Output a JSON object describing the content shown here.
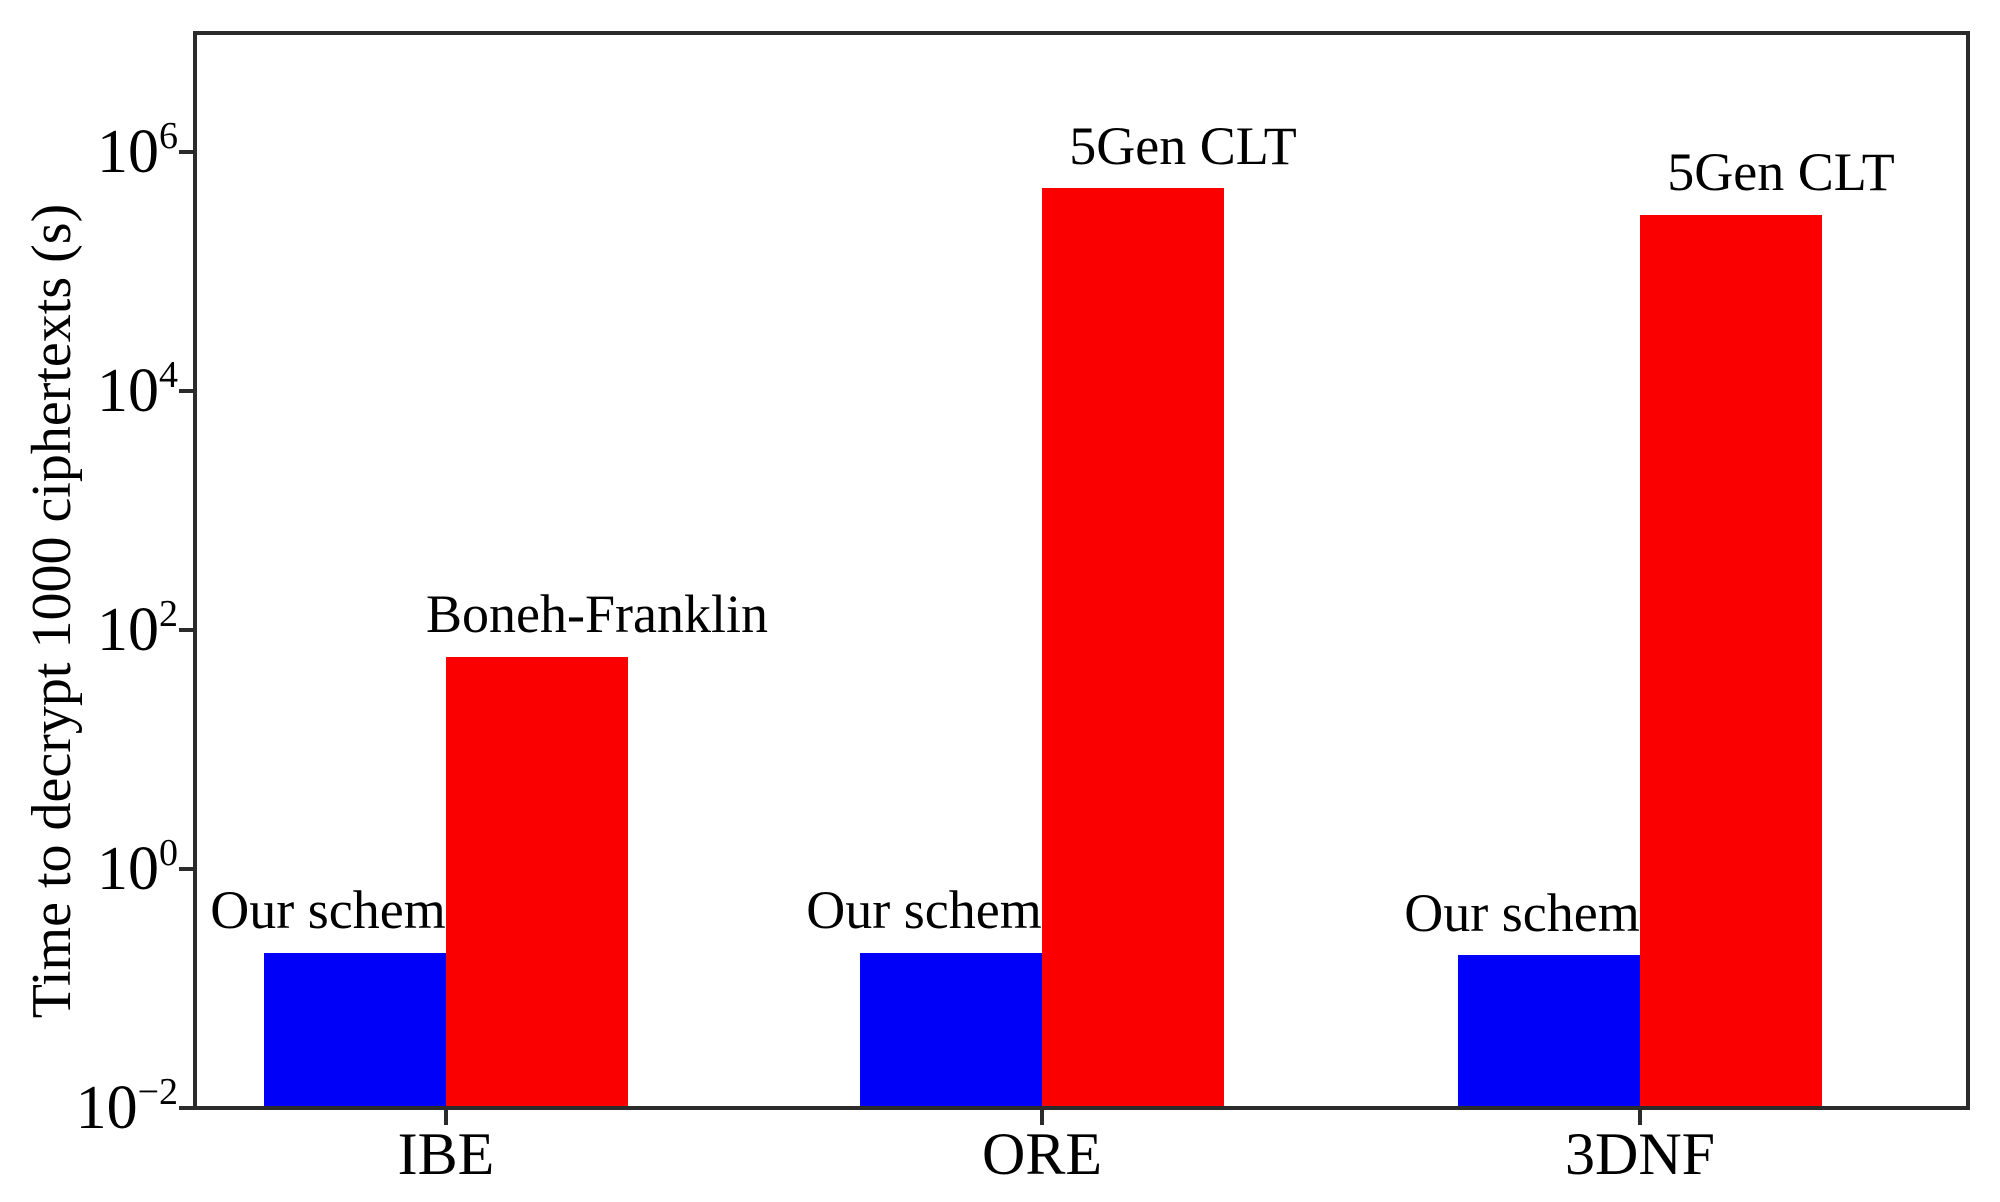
{
  "chart_data": {
    "type": "bar",
    "title": "",
    "xlabel": "",
    "ylabel": "Time to decrypt 1000 ciphertexts (s)",
    "yscale": "log",
    "ylim": [
      0.01,
      10000000
    ],
    "grid": false,
    "legend_position": "none (bars are labeled directly above each bar)",
    "ytick_base": "10",
    "ytick_exponents": [
      "6",
      "4",
      "2",
      "0",
      "−2"
    ],
    "ytick_values": [
      1000000,
      10000,
      100,
      1,
      0.01
    ],
    "categories": [
      "IBE",
      "ORE",
      "3DNF"
    ],
    "series": [
      {
        "color": "#0000fa",
        "values": [
          0.2,
          0.2,
          0.19
        ],
        "bar_labels": [
          "Our scheme",
          "Our scheme",
          "Our scheme"
        ]
      },
      {
        "color": "#fa0000",
        "values": [
          60,
          500000,
          300000
        ],
        "bar_labels": [
          "Boneh-Franklin",
          "5Gen CLT",
          "5Gen CLT"
        ]
      }
    ]
  },
  "colors": {
    "axis": "#2b2b2b",
    "text": "#000000",
    "background": "#ffffff"
  }
}
